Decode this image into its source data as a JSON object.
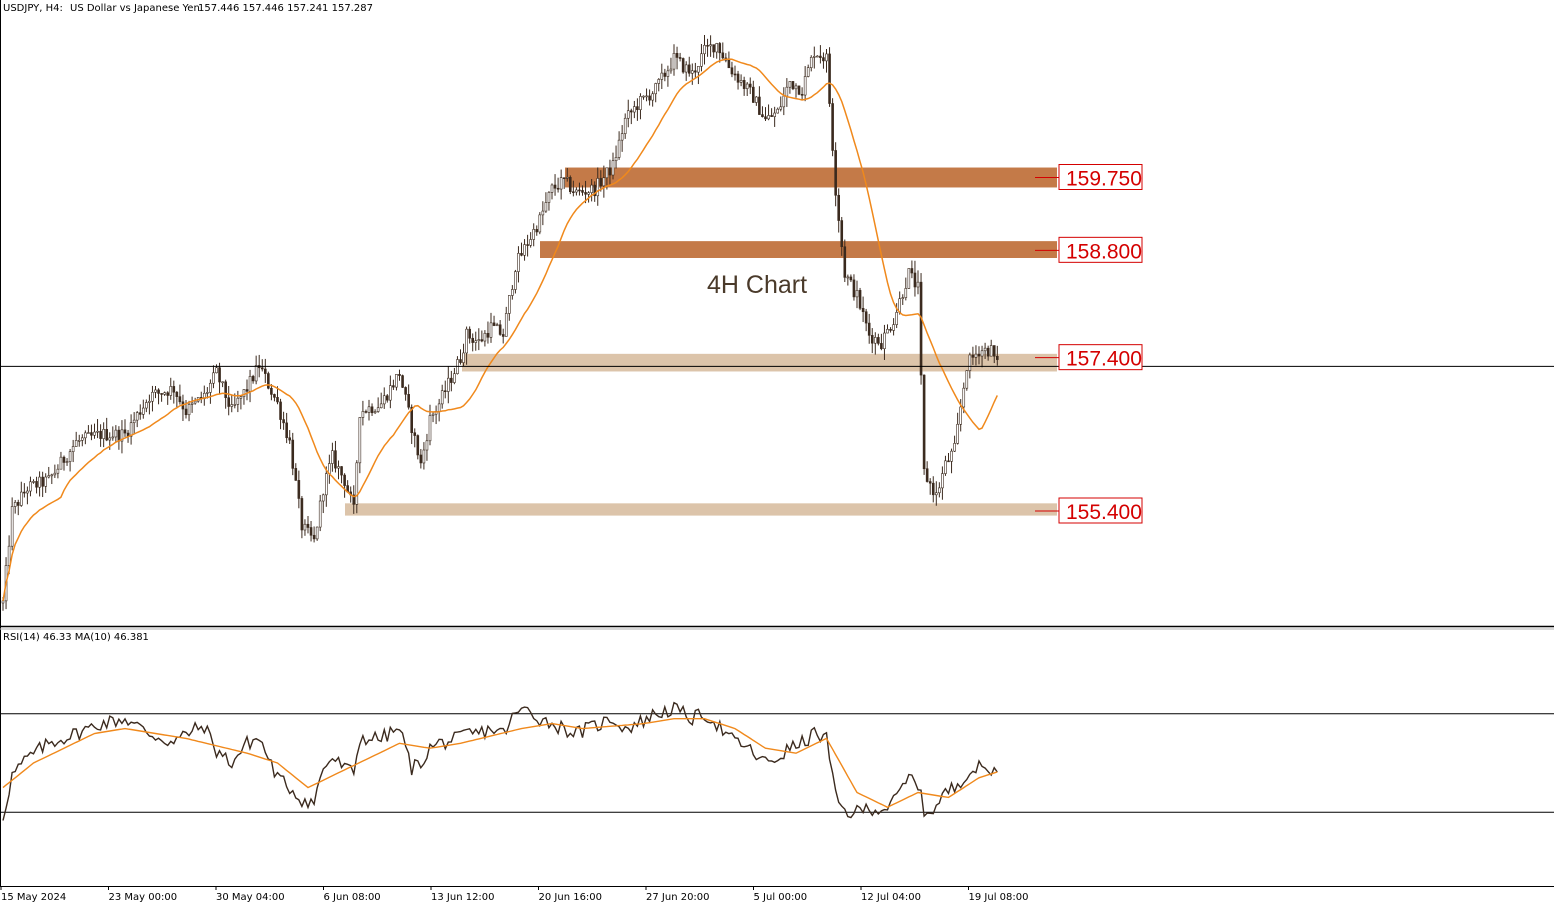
{
  "header": {
    "symbol": "USDJPY, H4:",
    "description": "US Dollar vs Japanese Yen",
    "ohlc": "157.446 157.446 157.241 157.287"
  },
  "annotation": "4H Chart",
  "rsi_header": "RSI(14) 46.33 MA(10) 46.381",
  "colors": {
    "bull_candle": "#ffffff",
    "bear_candle": "#3b2a1e",
    "candle_wick": "#3b2a1e",
    "ma_line": "#f0891c",
    "resistance_zone": "#c47a48",
    "support_zone": "#dcc4aa",
    "level_label": "#d40000",
    "rsi_line": "#3b2a1e",
    "rsi_ma_line": "#f0891c"
  },
  "chart_data": [
    {
      "type": "candlestick",
      "title": "",
      "x_ticks": [
        "15 May 2024",
        "23 May 00:00",
        "30 May 04:00",
        "6 Jun 08:00",
        "13 Jun 12:00",
        "20 Jun 16:00",
        "27 Jun 20:00",
        "5 Jul 00:00",
        "12 Jul 04:00",
        "19 Jul 08:00"
      ],
      "ylim": [
        153.9,
        161.7
      ],
      "current_price": 157.287,
      "moving_average": "orange",
      "path": [
        [
          0,
          154.2
        ],
        [
          3,
          155.4
        ],
        [
          8,
          155.7
        ],
        [
          15,
          155.8
        ],
        [
          24,
          156.3
        ],
        [
          32,
          156.4
        ],
        [
          40,
          156.4
        ],
        [
          48,
          156.9
        ],
        [
          56,
          157.0
        ],
        [
          60,
          156.7
        ],
        [
          66,
          156.9
        ],
        [
          70,
          157.2
        ],
        [
          75,
          156.7
        ],
        [
          80,
          157.0
        ],
        [
          84,
          157.3
        ],
        [
          90,
          156.8
        ],
        [
          94,
          156.3
        ],
        [
          98,
          155.2
        ],
        [
          102,
          155.0
        ],
        [
          105,
          155.7
        ],
        [
          108,
          156.1
        ],
        [
          112,
          155.8
        ],
        [
          115,
          155.4
        ],
        [
          117,
          156.7
        ],
        [
          124,
          156.8
        ],
        [
          130,
          157.2
        ],
        [
          134,
          156.5
        ],
        [
          137,
          156.0
        ],
        [
          140,
          156.6
        ],
        [
          143,
          156.8
        ],
        [
          150,
          157.4
        ],
        [
          152,
          157.7
        ],
        [
          156,
          157.6
        ],
        [
          160,
          157.8
        ],
        [
          164,
          157.7
        ],
        [
          168,
          158.6
        ],
        [
          172,
          158.9
        ],
        [
          176,
          159.2
        ],
        [
          180,
          159.6
        ],
        [
          184,
          159.7
        ],
        [
          188,
          159.55
        ],
        [
          194,
          159.6
        ],
        [
          200,
          159.9
        ],
        [
          204,
          160.5
        ],
        [
          208,
          160.7
        ],
        [
          214,
          160.9
        ],
        [
          220,
          161.3
        ],
        [
          226,
          161.1
        ],
        [
          230,
          161.4
        ],
        [
          234,
          161.5
        ],
        [
          238,
          161.2
        ],
        [
          242,
          161.0
        ],
        [
          246,
          160.8
        ],
        [
          250,
          160.5
        ],
        [
          254,
          160.6
        ],
        [
          258,
          161.0
        ],
        [
          262,
          160.9
        ],
        [
          266,
          161.4
        ],
        [
          270,
          161.3
        ],
        [
          273,
          159.6
        ],
        [
          276,
          158.5
        ],
        [
          280,
          158.2
        ],
        [
          284,
          157.7
        ],
        [
          288,
          157.6
        ],
        [
          292,
          157.9
        ],
        [
          297,
          158.5
        ],
        [
          300,
          158.3
        ],
        [
          302,
          155.9
        ],
        [
          306,
          155.6
        ],
        [
          309,
          156.0
        ],
        [
          312,
          156.2
        ],
        [
          316,
          157.3
        ],
        [
          320,
          157.5
        ],
        [
          324,
          157.5
        ],
        [
          326,
          157.3
        ]
      ],
      "levels": [
        {
          "label": "159.750",
          "value": 159.75,
          "low": 159.62,
          "high": 159.88,
          "kind": "resistance"
        },
        {
          "label": "158.800",
          "value": 158.8,
          "low": 158.7,
          "high": 158.92,
          "kind": "resistance"
        },
        {
          "label": "157.400",
          "value": 157.4,
          "low": 157.22,
          "high": 157.45,
          "kind": "support"
        },
        {
          "label": "155.400",
          "value": 155.4,
          "low": 155.34,
          "high": 155.5,
          "kind": "support"
        }
      ]
    },
    {
      "type": "line",
      "title": "",
      "ylim": [
        0,
        100
      ],
      "levels": [
        70,
        30
      ],
      "series": [
        {
          "name": "RSI(14)",
          "points": [
            [
              0,
              28
            ],
            [
              3,
              45
            ],
            [
              8,
              52
            ],
            [
              15,
              58
            ],
            [
              24,
              62
            ],
            [
              32,
              66
            ],
            [
              40,
              68
            ],
            [
              48,
              62
            ],
            [
              56,
              58
            ],
            [
              60,
              62
            ],
            [
              66,
              65
            ],
            [
              70,
              55
            ],
            [
              75,
              50
            ],
            [
              80,
              58
            ],
            [
              84,
              60
            ],
            [
              90,
              44
            ],
            [
              94,
              40
            ],
            [
              98,
              35
            ],
            [
              102,
              34
            ],
            [
              105,
              48
            ],
            [
              108,
              52
            ],
            [
              112,
              48
            ],
            [
              115,
              46
            ],
            [
              117,
              60
            ],
            [
              124,
              60
            ],
            [
              130,
              64
            ],
            [
              134,
              48
            ],
            [
              137,
              50
            ],
            [
              140,
              56
            ],
            [
              143,
              58
            ],
            [
              150,
              60
            ],
            [
              152,
              62
            ],
            [
              156,
              62
            ],
            [
              160,
              64
            ],
            [
              164,
              62
            ],
            [
              168,
              70
            ],
            [
              172,
              72
            ],
            [
              176,
              68
            ],
            [
              180,
              66
            ],
            [
              184,
              64
            ],
            [
              188,
              62
            ],
            [
              194,
              65
            ],
            [
              200,
              68
            ],
            [
              204,
              64
            ],
            [
              208,
              66
            ],
            [
              214,
              70
            ],
            [
              220,
              72
            ],
            [
              226,
              68
            ],
            [
              230,
              70
            ],
            [
              234,
              66
            ],
            [
              238,
              60
            ],
            [
              242,
              58
            ],
            [
              246,
              54
            ],
            [
              250,
              50
            ],
            [
              254,
              52
            ],
            [
              258,
              56
            ],
            [
              262,
              58
            ],
            [
              266,
              62
            ],
            [
              270,
              60
            ],
            [
              273,
              36
            ],
            [
              276,
              30
            ],
            [
              280,
              30
            ],
            [
              284,
              32
            ],
            [
              288,
              31
            ],
            [
              292,
              34
            ],
            [
              297,
              44
            ],
            [
              300,
              42
            ],
            [
              302,
              30
            ],
            [
              306,
              32
            ],
            [
              309,
              38
            ],
            [
              312,
              40
            ],
            [
              316,
              46
            ],
            [
              320,
              48
            ],
            [
              324,
              47
            ],
            [
              326,
              46.33
            ]
          ]
        },
        {
          "name": "MA(10)",
          "points": [
            [
              0,
              40
            ],
            [
              10,
              50
            ],
            [
              20,
              56
            ],
            [
              30,
              62
            ],
            [
              40,
              64
            ],
            [
              50,
              62
            ],
            [
              60,
              60
            ],
            [
              70,
              57
            ],
            [
              80,
              54
            ],
            [
              90,
              50
            ],
            [
              100,
              40
            ],
            [
              110,
              46
            ],
            [
              120,
              52
            ],
            [
              130,
              58
            ],
            [
              140,
              56
            ],
            [
              150,
              58
            ],
            [
              160,
              61
            ],
            [
              170,
              64
            ],
            [
              180,
              66
            ],
            [
              190,
              64
            ],
            [
              200,
              65
            ],
            [
              210,
              66
            ],
            [
              220,
              68
            ],
            [
              230,
              68
            ],
            [
              240,
              64
            ],
            [
              250,
              56
            ],
            [
              260,
              54
            ],
            [
              270,
              60
            ],
            [
              280,
              38
            ],
            [
              290,
              32
            ],
            [
              300,
              38
            ],
            [
              310,
              36
            ],
            [
              320,
              44
            ],
            [
              326,
              46.381
            ]
          ]
        }
      ]
    }
  ]
}
